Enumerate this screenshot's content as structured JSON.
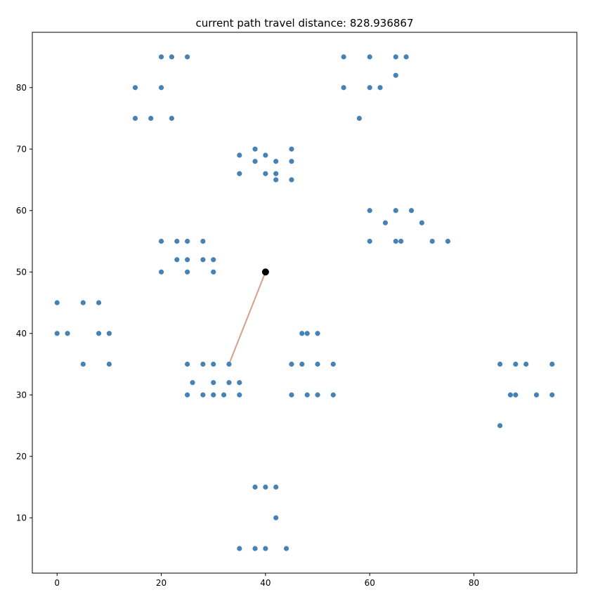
{
  "chart_data": {
    "type": "scatter",
    "title": "current path travel distance: 828.936867",
    "xlabel": "",
    "ylabel": "",
    "xlim": [
      -4.75,
      99.75
    ],
    "ylim": [
      1,
      89
    ],
    "xticks": [
      0,
      20,
      40,
      60,
      80
    ],
    "yticks": [
      10,
      20,
      30,
      40,
      50,
      60,
      70,
      80
    ],
    "grid": false,
    "colors": {
      "points": "#4682b4",
      "path": "#d4a08a",
      "current": "#000000"
    },
    "points": [
      [
        20,
        85
      ],
      [
        22,
        85
      ],
      [
        25,
        85
      ],
      [
        15,
        80
      ],
      [
        20,
        80
      ],
      [
        15,
        75
      ],
      [
        18,
        75
      ],
      [
        22,
        75
      ],
      [
        55,
        85
      ],
      [
        60,
        85
      ],
      [
        65,
        85
      ],
      [
        67,
        85
      ],
      [
        65,
        82
      ],
      [
        55,
        80
      ],
      [
        60,
        80
      ],
      [
        62,
        80
      ],
      [
        58,
        75
      ],
      [
        38,
        70
      ],
      [
        45,
        70
      ],
      [
        35,
        69
      ],
      [
        40,
        69
      ],
      [
        38,
        68
      ],
      [
        42,
        68
      ],
      [
        45,
        68
      ],
      [
        35,
        66
      ],
      [
        40,
        66
      ],
      [
        42,
        66
      ],
      [
        42,
        65
      ],
      [
        45,
        65
      ],
      [
        60,
        60
      ],
      [
        65,
        60
      ],
      [
        68,
        60
      ],
      [
        63,
        58
      ],
      [
        70,
        58
      ],
      [
        60,
        55
      ],
      [
        65,
        55
      ],
      [
        66,
        55
      ],
      [
        72,
        55
      ],
      [
        75,
        55
      ],
      [
        20,
        55
      ],
      [
        23,
        55
      ],
      [
        25,
        55
      ],
      [
        28,
        55
      ],
      [
        23,
        52
      ],
      [
        25,
        52
      ],
      [
        28,
        52
      ],
      [
        30,
        52
      ],
      [
        20,
        50
      ],
      [
        25,
        50
      ],
      [
        30,
        50
      ],
      [
        0,
        45
      ],
      [
        5,
        45
      ],
      [
        8,
        45
      ],
      [
        0,
        40
      ],
      [
        2,
        40
      ],
      [
        8,
        40
      ],
      [
        10,
        40
      ],
      [
        5,
        35
      ],
      [
        10,
        35
      ],
      [
        25,
        35
      ],
      [
        28,
        35
      ],
      [
        30,
        35
      ],
      [
        33,
        35
      ],
      [
        26,
        32
      ],
      [
        30,
        32
      ],
      [
        33,
        32
      ],
      [
        35,
        32
      ],
      [
        25,
        30
      ],
      [
        28,
        30
      ],
      [
        30,
        30
      ],
      [
        32,
        30
      ],
      [
        35,
        30
      ],
      [
        47,
        40
      ],
      [
        48,
        40
      ],
      [
        50,
        40
      ],
      [
        45,
        35
      ],
      [
        47,
        35
      ],
      [
        50,
        35
      ],
      [
        53,
        35
      ],
      [
        45,
        30
      ],
      [
        48,
        30
      ],
      [
        50,
        30
      ],
      [
        53,
        30
      ],
      [
        85,
        35
      ],
      [
        88,
        35
      ],
      [
        90,
        35
      ],
      [
        95,
        35
      ],
      [
        87,
        30
      ],
      [
        88,
        30
      ],
      [
        92,
        30
      ],
      [
        95,
        30
      ],
      [
        85,
        25
      ],
      [
        38,
        15
      ],
      [
        40,
        15
      ],
      [
        42,
        15
      ],
      [
        42,
        10
      ],
      [
        35,
        5
      ],
      [
        38,
        5
      ],
      [
        40,
        5
      ],
      [
        44,
        5
      ]
    ],
    "path": [
      [
        40,
        50
      ],
      [
        33,
        35
      ]
    ],
    "current_point": [
      40,
      50
    ]
  }
}
